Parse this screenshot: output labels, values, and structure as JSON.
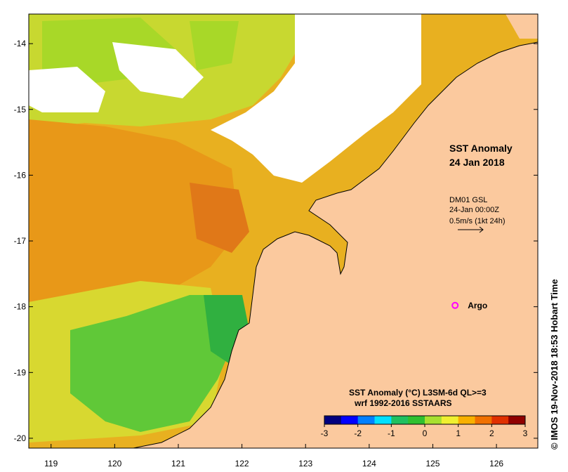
{
  "map": {
    "title_line1": "SST Anomaly",
    "title_line2": "24 Jan 2018",
    "current_product": "DM01 GSL",
    "current_time": "24-Jan 00:00Z",
    "current_scale": "0.5m/s (1kt 24h)",
    "argo_label": "Argo",
    "argo_lon": 125.35,
    "argo_lat": -17.98,
    "colors": {
      "land": "#fbc99e",
      "argo": "#ff00ff",
      "coast": "#000000",
      "bathy": "#00d8e8"
    },
    "lat_ticks": [
      "-14",
      "-15",
      "-16",
      "-17",
      "-18",
      "-19",
      "-20"
    ],
    "lon_ticks": [
      "119",
      "120",
      "121",
      "122",
      "123",
      "124",
      "125",
      "126"
    ],
    "lon_range": [
      118.65,
      126.65
    ],
    "lat_range": [
      -20.15,
      -13.55
    ]
  },
  "colorbar": {
    "title_line1": "SST Anomaly (°C) L3SM-6d QL>=3",
    "title_line2": "wrf 1992-2016 SSTAARS",
    "tick_labels": [
      "-3",
      "-2",
      "-1",
      "0",
      "1",
      "2",
      "3"
    ],
    "range": [
      -3,
      3
    ],
    "colors": [
      "#00007f",
      "#0000ff",
      "#0080ff",
      "#00e0ff",
      "#20c060",
      "#30c030",
      "#a8e030",
      "#f0f030",
      "#f8b000",
      "#f07000",
      "#e03000",
      "#900000"
    ]
  },
  "credit": "© IMOS 19-Nov-2018 18:53 Hobart Time"
}
